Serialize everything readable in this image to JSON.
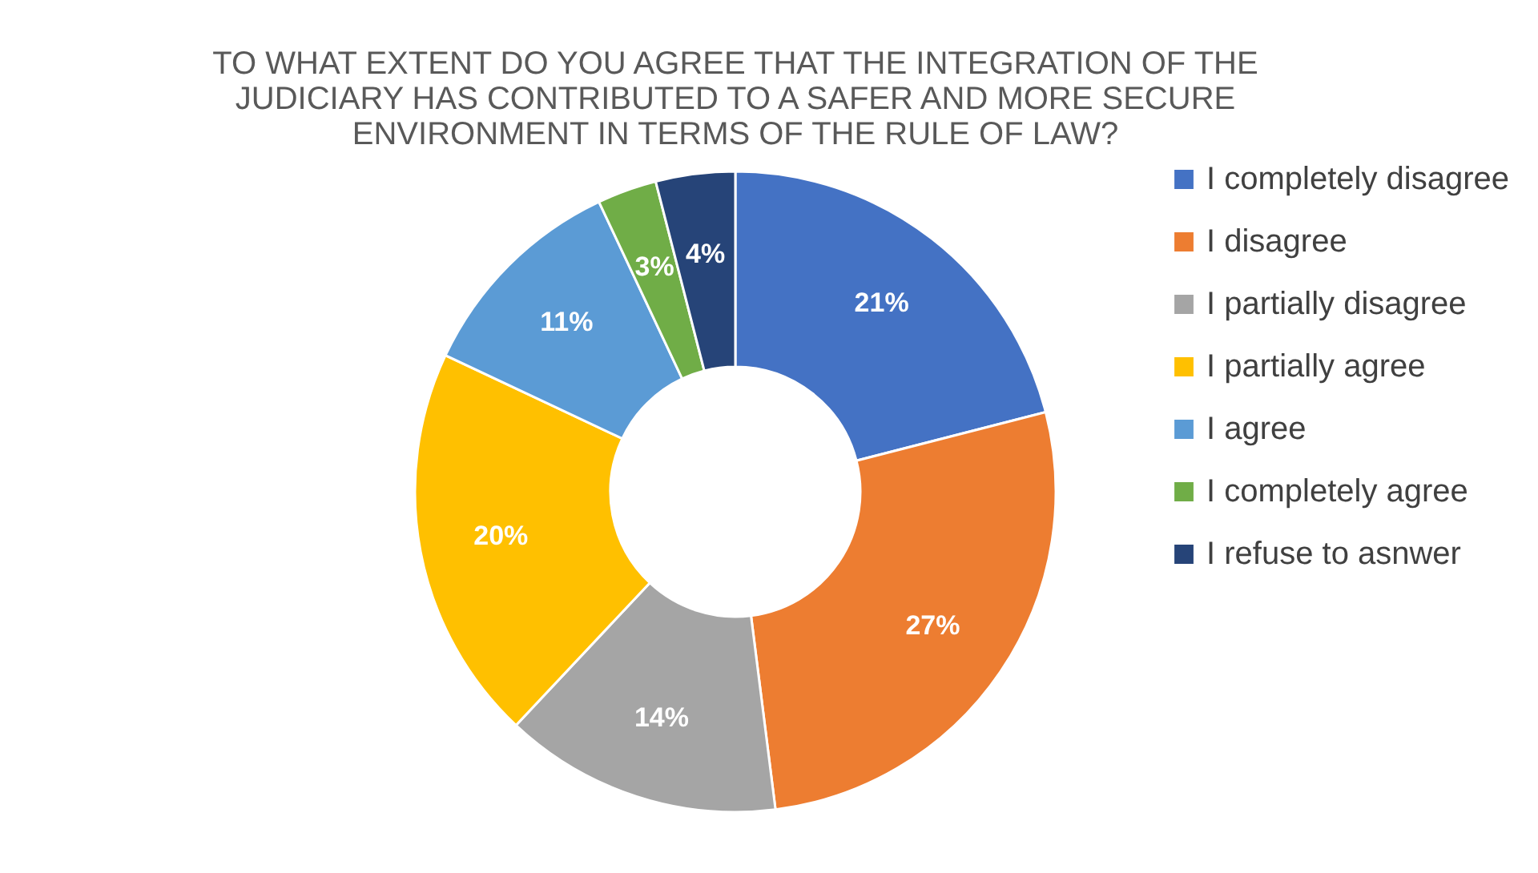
{
  "chart_data": {
    "type": "donut",
    "title": "TO WHAT EXTENT DO YOU AGREE THAT THE INTEGRATION OF THE JUDICIARY HAS CONTRIBUTED TO A SAFER AND MORE SECURE ENVIRONMENT IN TERMS OF THE RULE OF LAW?",
    "categories": [
      "I completely disagree",
      "I disagree",
      "I partially disagree",
      "I partially agree",
      "I agree",
      "I completely agree",
      "I refuse to asnwer"
    ],
    "values": [
      21,
      27,
      14,
      20,
      11,
      3,
      4
    ],
    "colors": [
      "#4472c4",
      "#ed7d31",
      "#a5a5a5",
      "#ffc000",
      "#5b9bd5",
      "#70ad47",
      "#264478"
    ],
    "value_labels": [
      "21%",
      "27%",
      "14%",
      "20%",
      "11%",
      "3%",
      "4%"
    ],
    "legend": "right"
  }
}
